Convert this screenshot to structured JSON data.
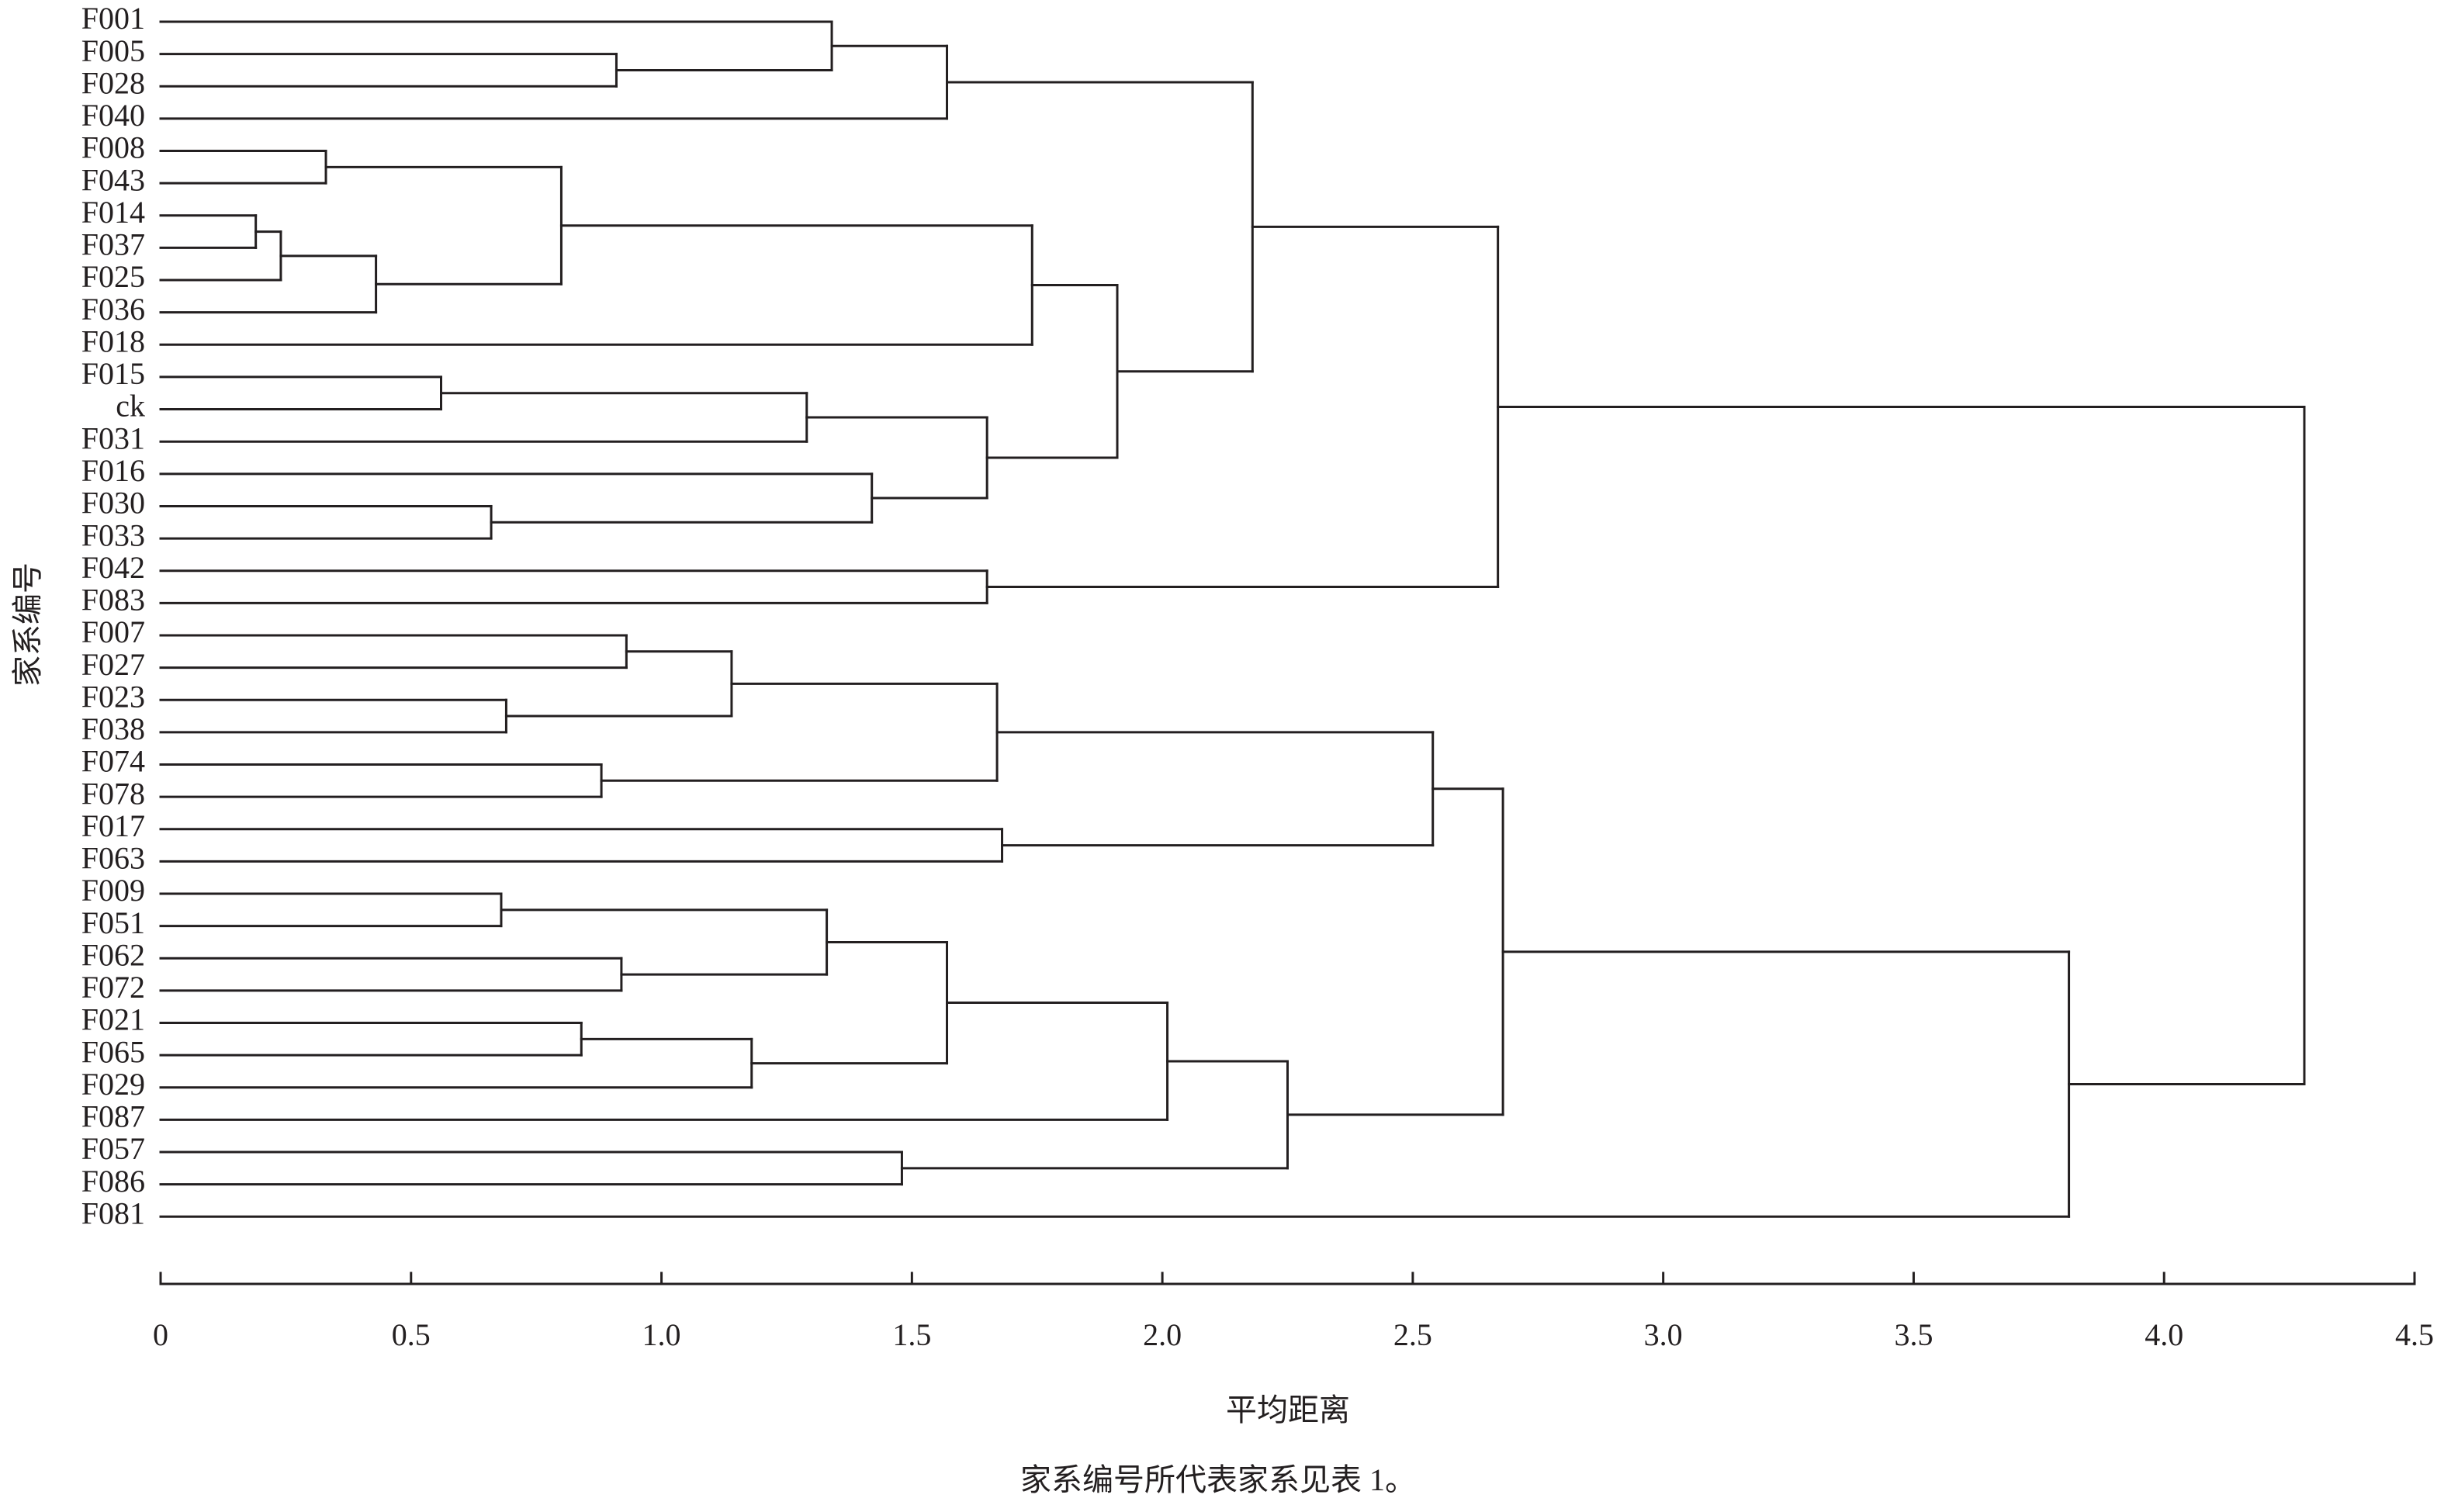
{
  "chart_data": {
    "type": "dendrogram",
    "x_label": "平均距离",
    "y_label": "家系编号",
    "caption": "家系编号所代表家系见表 1。",
    "leaves": [
      "F001",
      "F005",
      "F028",
      "F040",
      "F008",
      "F043",
      "F014",
      "F037",
      "F025",
      "F036",
      "F018",
      "F015",
      "ck",
      "F031",
      "F016",
      "F030",
      "F033",
      "F042",
      "F083",
      "F007",
      "F027",
      "F023",
      "F038",
      "F074",
      "F078",
      "F017",
      "F063",
      "F009",
      "F051",
      "F062",
      "F072",
      "F021",
      "F065",
      "F029",
      "F087",
      "F057",
      "F086",
      "F081"
    ],
    "tree": {
      "height": 4.28,
      "children": [
        {
          "height": 2.67,
          "children": [
            {
              "height": 2.18,
              "children": [
                {
                  "height": 1.57,
                  "children": [
                    {
                      "height": 1.34,
                      "children": [
                        0,
                        {
                          "height": 0.91,
                          "children": [
                            1,
                            2
                          ]
                        }
                      ]
                    },
                    3
                  ]
                },
                {
                  "height": 1.91,
                  "children": [
                    {
                      "height": 1.74,
                      "children": [
                        {
                          "height": 0.8,
                          "children": [
                            {
                              "height": 0.33,
                              "children": [
                                4,
                                5
                              ]
                            },
                            {
                              "height": 0.43,
                              "children": [
                                {
                                  "height": 0.24,
                                  "children": [
                                    {
                                      "height": 0.19,
                                      "children": [
                                        6,
                                        7
                                      ]
                                    },
                                    8
                                  ]
                                },
                                9
                              ]
                            }
                          ]
                        },
                        10
                      ]
                    },
                    {
                      "height": 1.65,
                      "children": [
                        {
                          "height": 1.29,
                          "children": [
                            {
                              "height": 0.56,
                              "children": [
                                11,
                                12
                              ]
                            },
                            13
                          ]
                        },
                        {
                          "height": 1.42,
                          "children": [
                            14,
                            {
                              "height": 0.66,
                              "children": [
                                15,
                                16
                              ]
                            }
                          ]
                        }
                      ]
                    }
                  ]
                }
              ]
            },
            {
              "height": 1.65,
              "children": [
                17,
                18
              ]
            }
          ]
        },
        {
          "height": 3.81,
          "children": [
            {
              "height": 2.68,
              "children": [
                {
                  "height": 2.54,
                  "children": [
                    {
                      "height": 1.67,
                      "children": [
                        {
                          "height": 1.14,
                          "children": [
                            {
                              "height": 0.93,
                              "children": [
                                19,
                                20
                              ]
                            },
                            {
                              "height": 0.69,
                              "children": [
                                21,
                                22
                              ]
                            }
                          ]
                        },
                        {
                          "height": 0.88,
                          "children": [
                            23,
                            24
                          ]
                        }
                      ]
                    },
                    {
                      "height": 1.68,
                      "children": [
                        25,
                        26
                      ]
                    }
                  ]
                },
                {
                  "height": 2.25,
                  "children": [
                    {
                      "height": 2.01,
                      "children": [
                        {
                          "height": 1.57,
                          "children": [
                            {
                              "height": 1.33,
                              "children": [
                                {
                                  "height": 0.68,
                                  "children": [
                                    27,
                                    28
                                  ]
                                },
                                {
                                  "height": 0.92,
                                  "children": [
                                    29,
                                    30
                                  ]
                                }
                              ]
                            },
                            {
                              "height": 1.18,
                              "children": [
                                {
                                  "height": 0.84,
                                  "children": [
                                    31,
                                    32
                                  ]
                                },
                                33
                              ]
                            }
                          ]
                        },
                        34
                      ]
                    },
                    {
                      "height": 1.48,
                      "children": [
                        35,
                        36
                      ]
                    }
                  ]
                }
              ]
            },
            37
          ]
        }
      ]
    },
    "xlim": [
      0,
      4.5
    ],
    "xticks": [
      0,
      0.5,
      {
        "value": 1,
        "label": "1.0"
      },
      1.5,
      {
        "value": 2,
        "label": "2.0"
      },
      2.5,
      {
        "value": 3,
        "label": "3.0"
      },
      3.5,
      {
        "value": 4,
        "label": "4.0"
      },
      4.5
    ],
    "color": "#231f20"
  }
}
